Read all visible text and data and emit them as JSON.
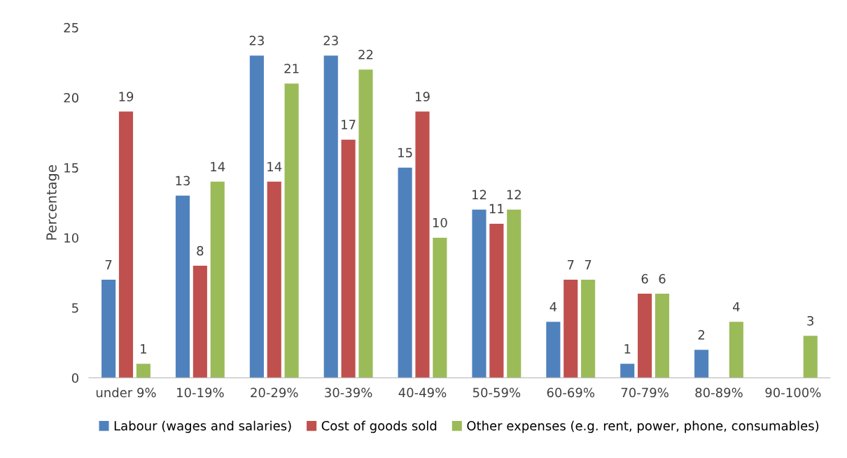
{
  "chart_data": {
    "type": "bar",
    "ylabel": "Percentage",
    "categories": [
      "under 9%",
      "10-19%",
      "20-29%",
      "30-39%",
      "40-49%",
      "50-59%",
      "60-69%",
      "70-79%",
      "80-89%",
      "90-100%"
    ],
    "series": [
      {
        "name": "Labour (wages and salaries)",
        "color": "#4f81bd",
        "values": [
          7,
          13,
          23,
          23,
          15,
          12,
          4,
          1,
          2,
          null
        ]
      },
      {
        "name": "Cost of goods sold",
        "color": "#c0504d",
        "values": [
          19,
          8,
          14,
          17,
          19,
          11,
          7,
          6,
          null,
          null
        ]
      },
      {
        "name": "Other expenses (e.g. rent, power, phone, consumables)",
        "color": "#9bbb59",
        "values": [
          1,
          14,
          21,
          22,
          10,
          12,
          7,
          6,
          4,
          3
        ]
      }
    ],
    "ylim": [
      0,
      25
    ],
    "yticks": [
      0,
      5,
      10,
      15,
      20,
      25
    ],
    "grid": false,
    "legend": "bottom",
    "data_labels": true
  }
}
